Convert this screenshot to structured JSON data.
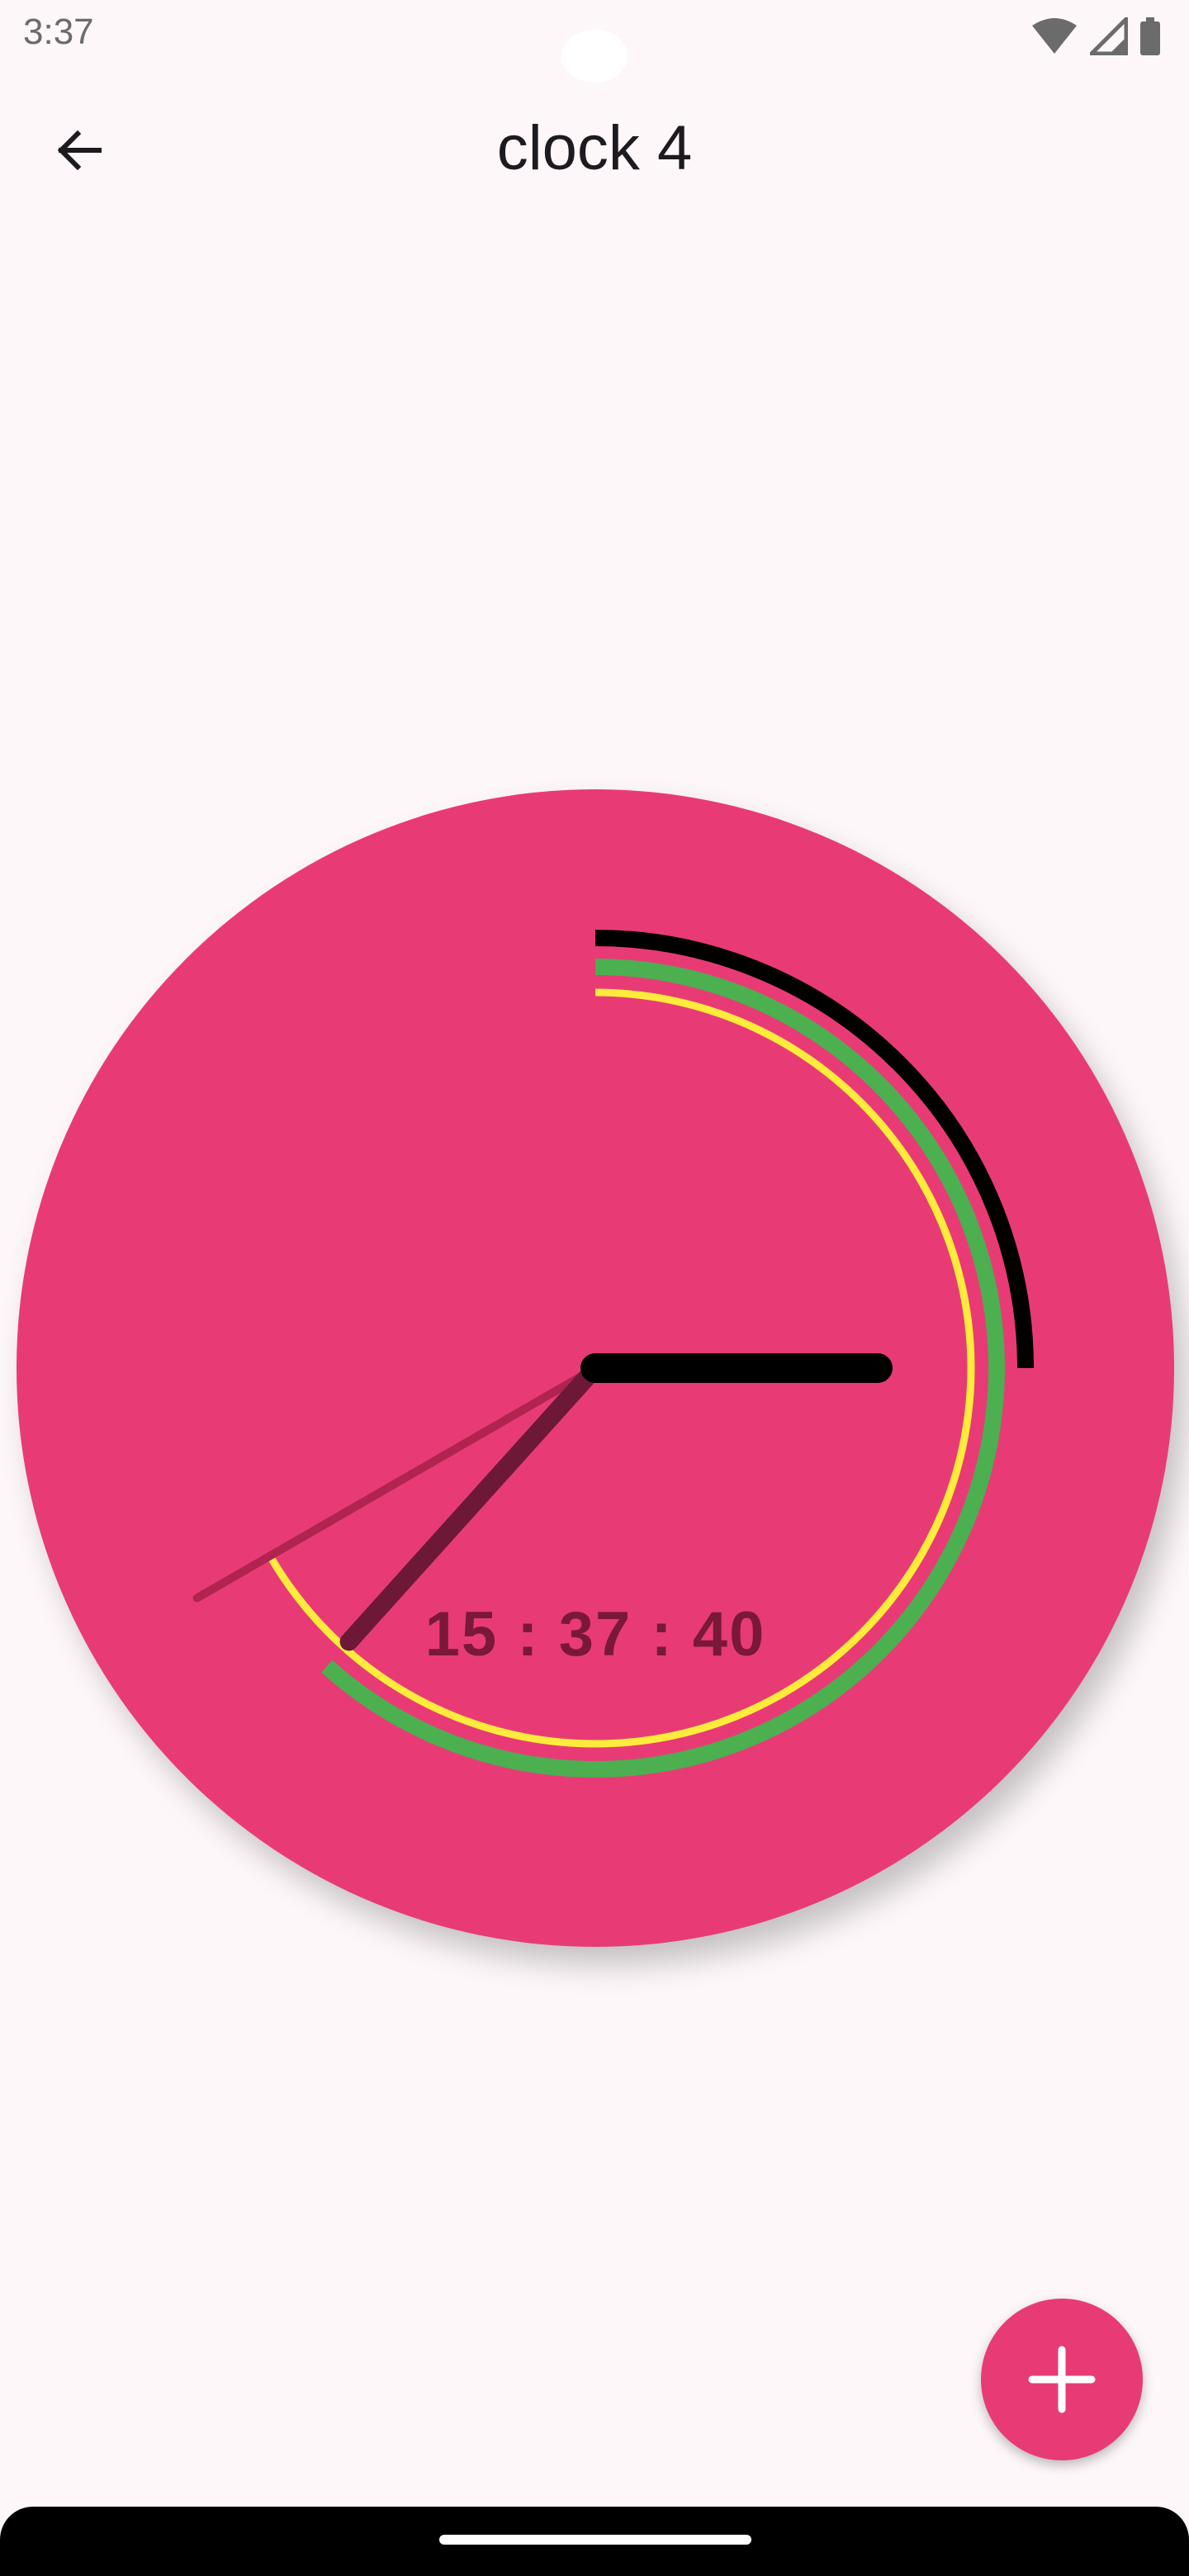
{
  "status_bar": {
    "time": "3:37",
    "icons": [
      "wifi-icon",
      "signal-icon",
      "battery-icon"
    ]
  },
  "app_bar": {
    "title": "clock 4",
    "back_icon": "arrow-back-icon"
  },
  "clock": {
    "digital_time": "15 : 37 : 40",
    "hours": 15,
    "minutes": 37,
    "seconds": 40,
    "colors": {
      "face": "#e83b76",
      "hour_hand": "#000000",
      "minute_hand": "#6e1838",
      "second_hand": "#b0244f",
      "hour_arc": "#000000",
      "minute_arc": "#4caf50",
      "second_arc": "#ffeb3b",
      "digital_text": "#7a1838"
    }
  },
  "fab": {
    "icon": "plus-icon",
    "color": "#e83b76"
  }
}
